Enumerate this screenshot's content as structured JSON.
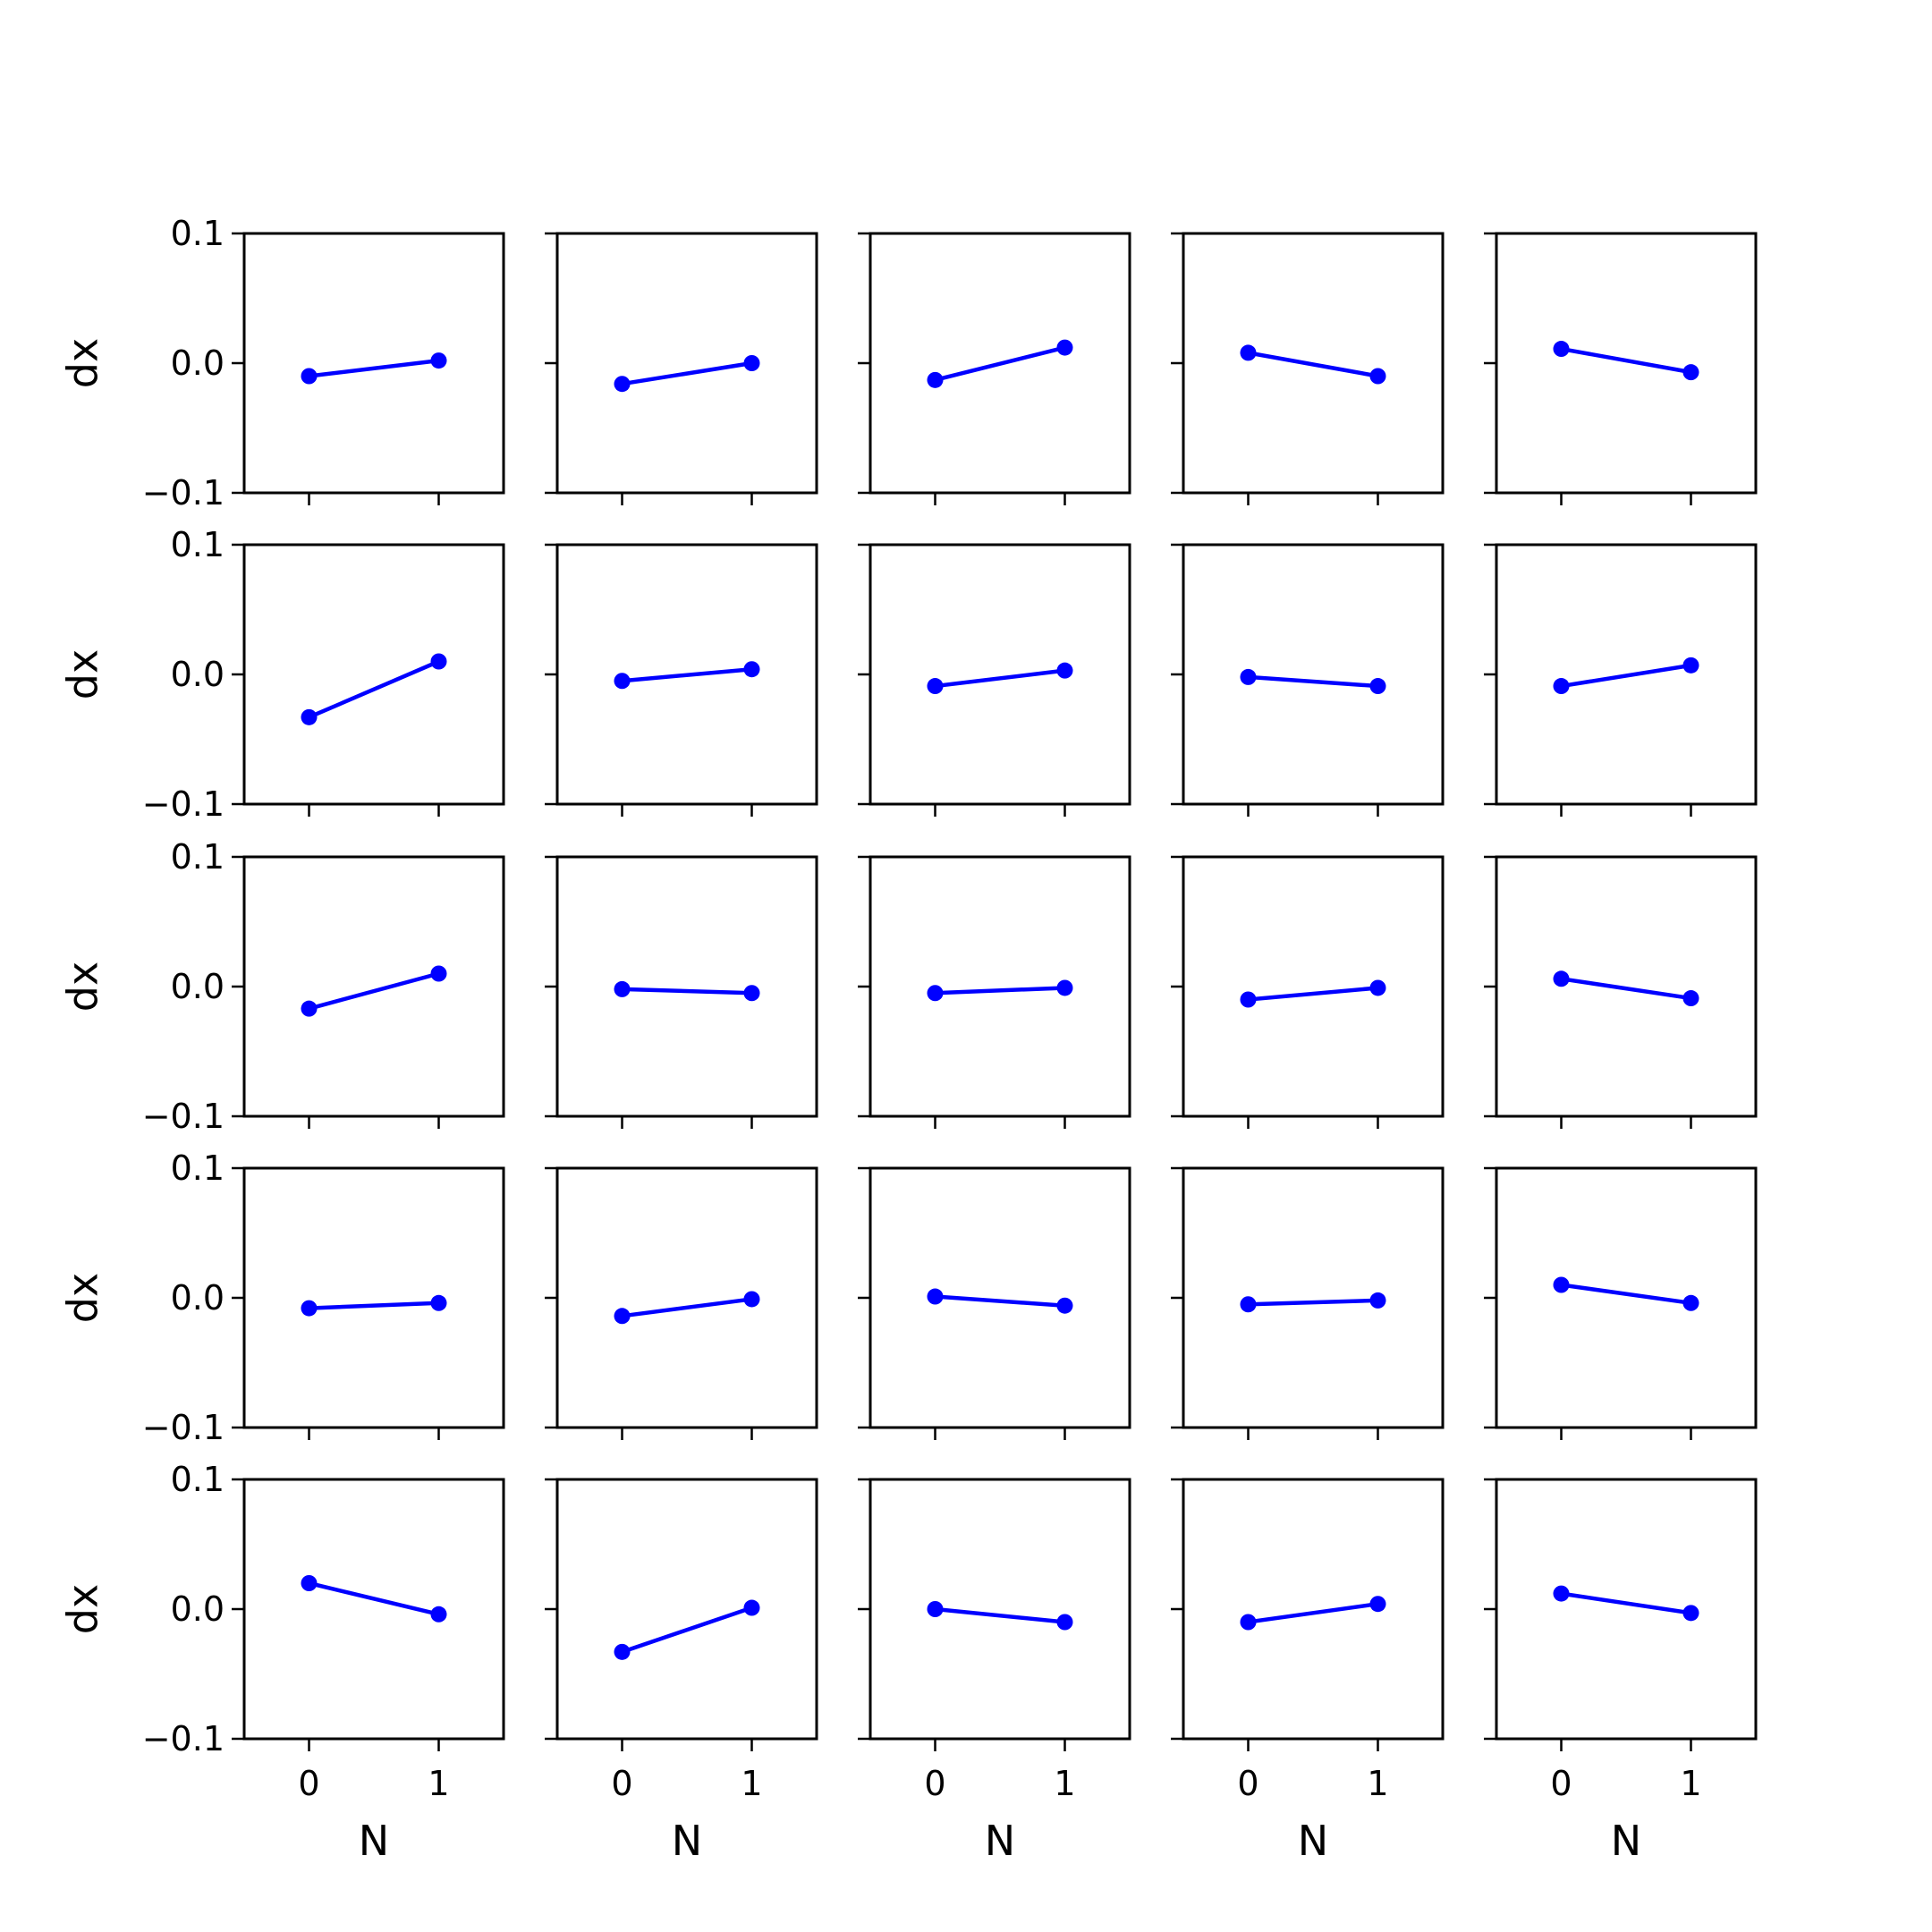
{
  "chart_data": {
    "type": "line",
    "layout": "grid",
    "rows": 5,
    "cols": 5,
    "xlabel": "N",
    "ylabel": "dx",
    "x": [
      0,
      1
    ],
    "xticks": [
      0,
      1
    ],
    "xtick_labels": [
      "0",
      "1"
    ],
    "xlim": [
      -0.5,
      1.5
    ],
    "ylim": [
      -0.1,
      0.1
    ],
    "yticks": [
      -0.1,
      0.0,
      0.1
    ],
    "ytick_labels": [
      "−0.1",
      "0.0",
      "0.1"
    ],
    "grid": false,
    "color": "#0000ff",
    "marker": "circle",
    "subplots": [
      [
        [
          -0.01,
          0.002
        ],
        [
          -0.016,
          0.0
        ],
        [
          -0.013,
          0.012
        ],
        [
          0.008,
          -0.01
        ],
        [
          0.011,
          -0.007
        ]
      ],
      [
        [
          -0.033,
          0.01
        ],
        [
          -0.005,
          0.004
        ],
        [
          -0.009,
          0.003
        ],
        [
          -0.002,
          -0.009
        ],
        [
          -0.009,
          0.007
        ]
      ],
      [
        [
          -0.017,
          0.01
        ],
        [
          -0.002,
          -0.005
        ],
        [
          -0.005,
          -0.001
        ],
        [
          -0.01,
          -0.001
        ],
        [
          0.006,
          -0.009
        ]
      ],
      [
        [
          -0.008,
          -0.004
        ],
        [
          -0.014,
          -0.001
        ],
        [
          0.001,
          -0.006
        ],
        [
          -0.005,
          -0.002
        ],
        [
          0.01,
          -0.004
        ]
      ],
      [
        [
          0.02,
          -0.004
        ],
        [
          -0.033,
          0.001
        ],
        [
          0.0,
          -0.01
        ],
        [
          -0.01,
          0.004
        ],
        [
          0.012,
          -0.003
        ]
      ]
    ]
  }
}
